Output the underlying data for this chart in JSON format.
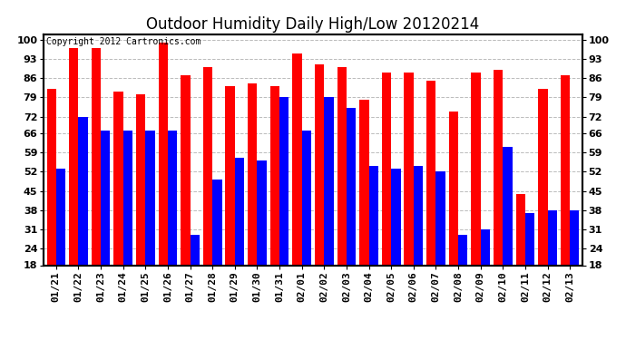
{
  "title": "Outdoor Humidity Daily High/Low 20120214",
  "copyright": "Copyright 2012 Cartronics.com",
  "dates": [
    "01/21",
    "01/22",
    "01/23",
    "01/24",
    "01/25",
    "01/26",
    "01/27",
    "01/28",
    "01/29",
    "01/30",
    "01/31",
    "02/01",
    "02/02",
    "02/03",
    "02/04",
    "02/05",
    "02/06",
    "02/07",
    "02/08",
    "02/09",
    "02/10",
    "02/11",
    "02/12",
    "02/13"
  ],
  "high": [
    82,
    97,
    97,
    81,
    80,
    99,
    87,
    90,
    83,
    84,
    83,
    95,
    91,
    90,
    78,
    88,
    88,
    85,
    74,
    88,
    89,
    44,
    82,
    87
  ],
  "low": [
    53,
    72,
    67,
    67,
    67,
    67,
    29,
    49,
    57,
    56,
    79,
    67,
    79,
    75,
    54,
    53,
    54,
    52,
    29,
    31,
    61,
    37,
    38,
    38
  ],
  "bar_width": 0.42,
  "high_color": "#ff0000",
  "low_color": "#0000ff",
  "bg_color": "#ffffff",
  "grid_color": "#bbbbbb",
  "yticks": [
    18,
    24,
    31,
    38,
    45,
    52,
    59,
    66,
    72,
    79,
    86,
    93,
    100
  ],
  "ylim": [
    18,
    102
  ],
  "ybase": 18,
  "title_fontsize": 12,
  "axis_fontsize": 8,
  "copyright_fontsize": 7
}
